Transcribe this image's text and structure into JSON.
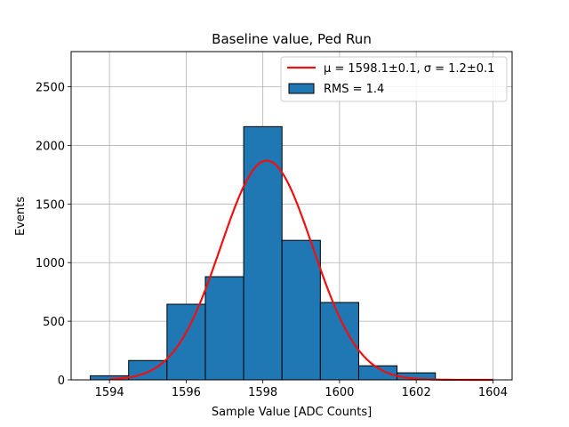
{
  "chart_data": {
    "type": "bar",
    "title": "Baseline value, Ped Run",
    "xlabel": "Sample Value [ADC Counts]",
    "ylabel": "Events",
    "xlim": [
      1593.0,
      1604.5
    ],
    "ylim": [
      0,
      2800
    ],
    "x_ticks": [
      1594,
      1596,
      1598,
      1600,
      1602,
      1604
    ],
    "y_ticks": [
      0,
      500,
      1000,
      1500,
      2000,
      2500
    ],
    "grid": true,
    "legend_position": "top-right",
    "bar_color": "#1f77b4",
    "fit_color": "#ee1111",
    "histogram": {
      "name": "RMS = 1.4",
      "bins": [
        {
          "x0": 1593.5,
          "x1": 1594.5,
          "value": 35
        },
        {
          "x0": 1594.5,
          "x1": 1595.5,
          "value": 165
        },
        {
          "x0": 1595.5,
          "x1": 1596.5,
          "value": 645
        },
        {
          "x0": 1596.5,
          "x1": 1597.5,
          "value": 880
        },
        {
          "x0": 1597.5,
          "x1": 1598.5,
          "value": 2160
        },
        {
          "x0": 1598.5,
          "x1": 1599.5,
          "value": 1190
        },
        {
          "x0": 1599.5,
          "x1": 1600.5,
          "value": 660
        },
        {
          "x0": 1600.5,
          "x1": 1601.5,
          "value": 120
        },
        {
          "x0": 1601.5,
          "x1": 1602.5,
          "value": 60
        }
      ]
    },
    "fit": {
      "name_mu": "μ = 1598.1±0.1",
      "name_sigma": "σ = 1.2±0.1",
      "mu": 1598.1,
      "sigma": 1.2,
      "amplitude": 1870,
      "x_range": [
        1594.0,
        1604.0
      ]
    }
  }
}
